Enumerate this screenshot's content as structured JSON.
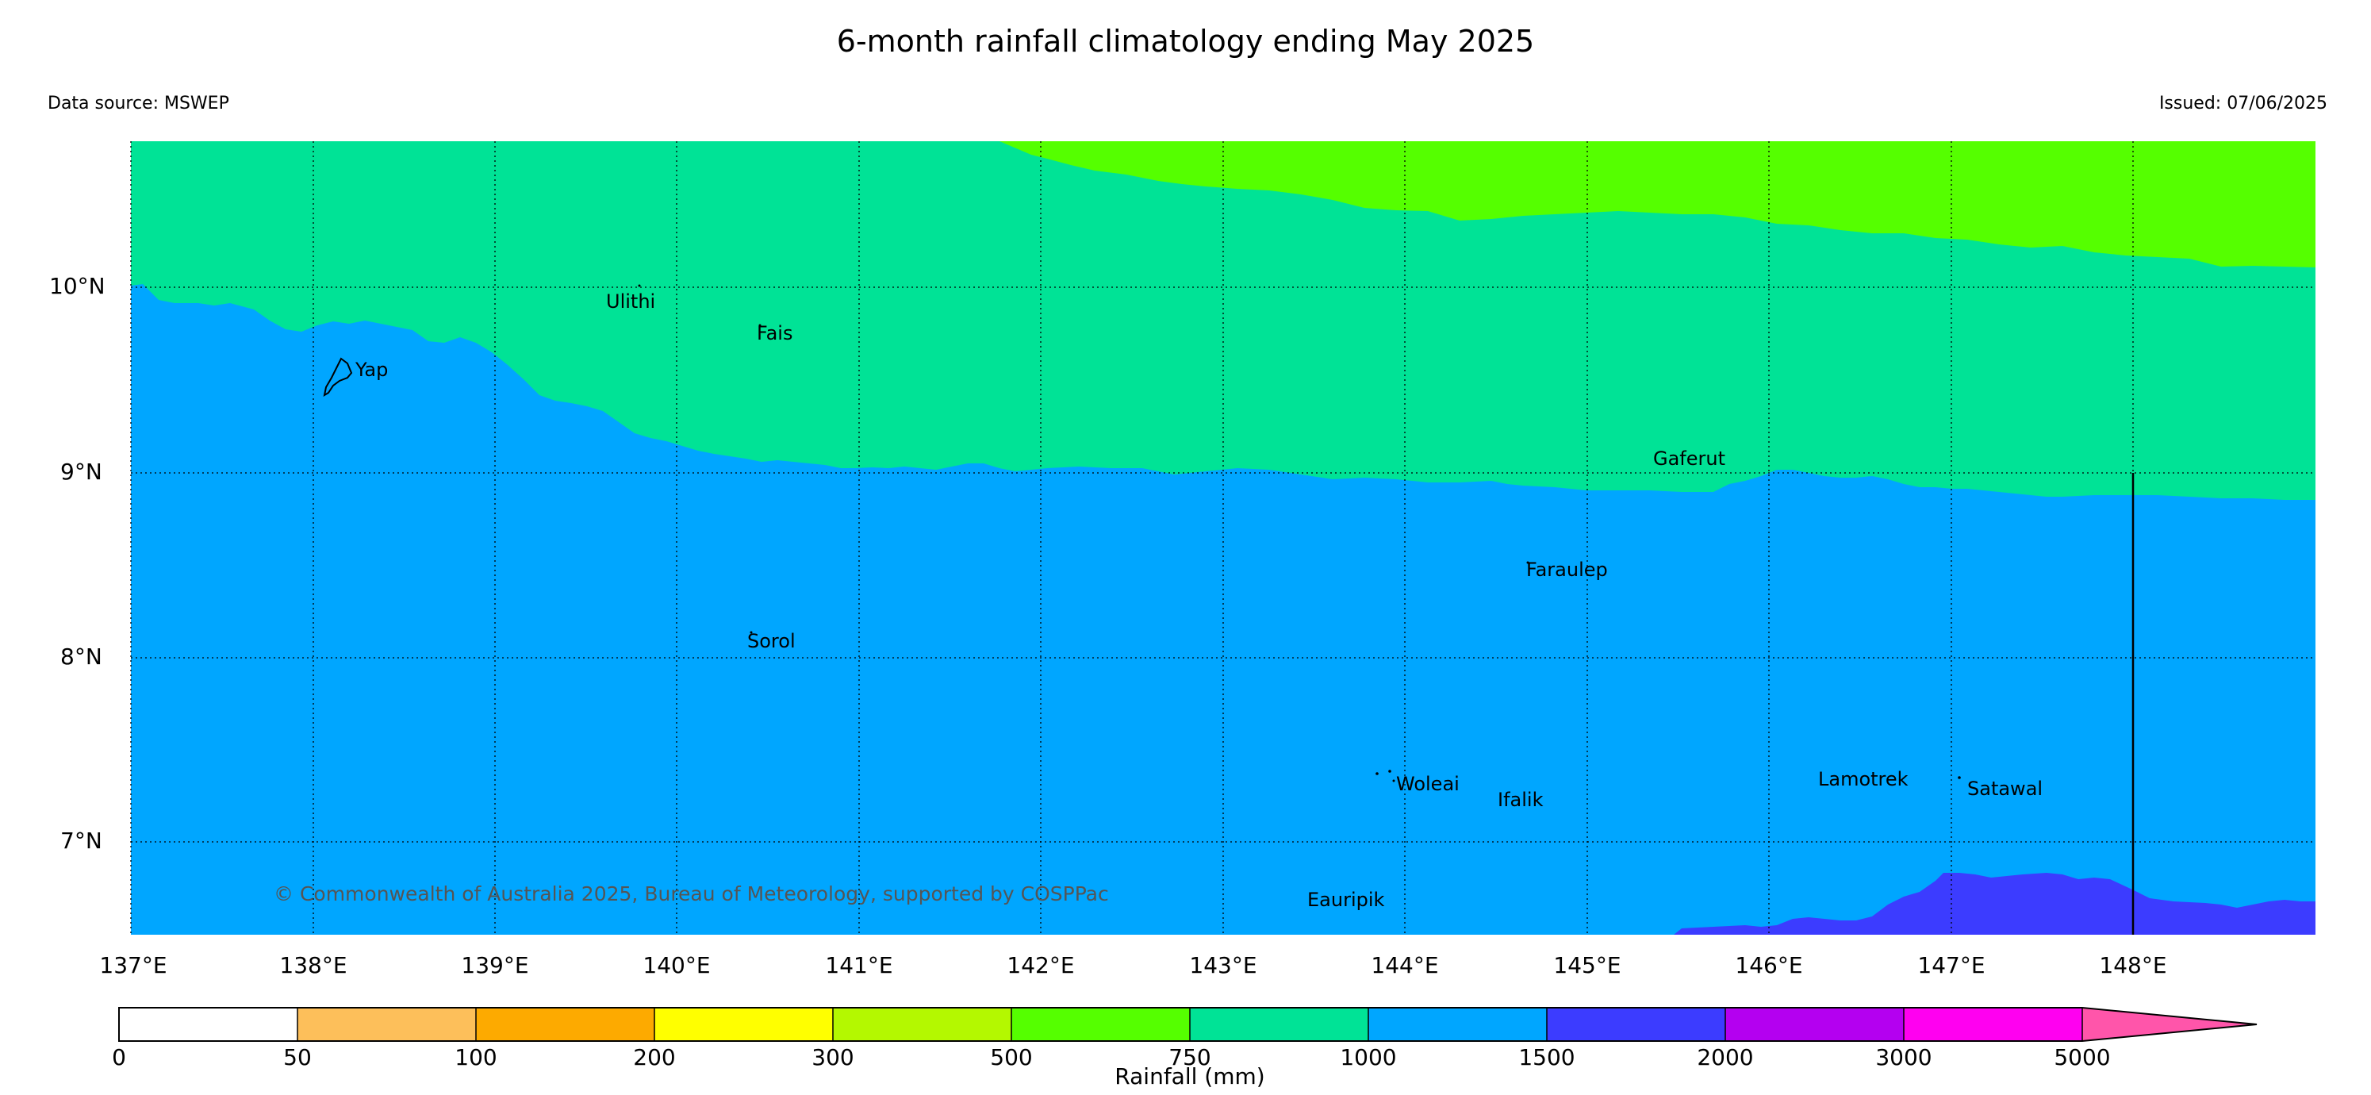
{
  "title": "6-month rainfall climatology ending May 2025",
  "data_source": "Data source: MSWEP",
  "issued": "Issued: 07/06/2025",
  "copyright": "© Commonwealth of Australia 2025, Bureau of Meteorology, supported by COSPPac",
  "lat_labels": [
    "10°N",
    "9°N",
    "8°N",
    "7°N"
  ],
  "lon_labels": [
    "137°E",
    "138°E",
    "139°E",
    "140°E",
    "141°E",
    "142°E",
    "143°E",
    "144°E",
    "145°E",
    "146°E",
    "147°E",
    "148°E"
  ],
  "places": [
    "Ulithi",
    "Fais",
    "Yap",
    "Gaferut",
    "Faraulep",
    "Sorol",
    "Woleai",
    "Ifalik",
    "Lamotrek",
    "Satawal",
    "Eauripik"
  ],
  "colorbar": {
    "label": "Rainfall (mm)",
    "ticks": [
      "0",
      "50",
      "100",
      "200",
      "300",
      "500",
      "750",
      "1000",
      "1500",
      "2000",
      "3000",
      "5000"
    ],
    "colors": [
      "#ffffff",
      "#fdbf5a",
      "#fdaa00",
      "#ffff00",
      "#b4f800",
      "#55ff00",
      "#00e396",
      "#00a6ff",
      "#3c3cff",
      "#b400f0",
      "#ff00f0",
      "#ff55aa"
    ]
  },
  "map_colors": {
    "750-1000": "#55ff00",
    "1000-1500": "#00e396",
    "1500-2000": "#00a6ff",
    "2000-3000": "#3c3cff"
  }
}
